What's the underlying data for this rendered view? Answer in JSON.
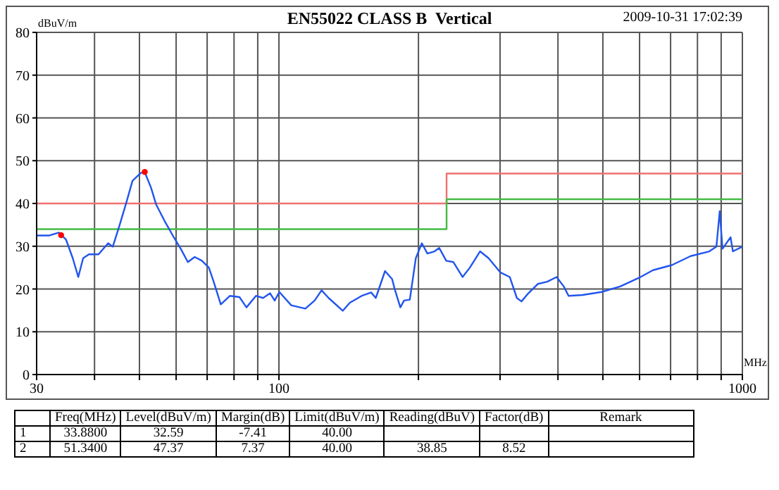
{
  "chart_data": {
    "type": "line",
    "title": "EN55022 CLASS B  Vertical",
    "xlabel": "MHz",
    "ylabel": "dBuV/m",
    "annotations": [
      "2009-10-31  17:02:39",
      "Freq(MHz)",
      "Level(dBuV/m)",
      "Margin(dB)",
      "Limit(dBuV/m)",
      "Reading(dBuV)",
      "Factor(dB)",
      "Remark",
      "1",
      "33.8800",
      "32.59",
      "-7.41",
      "40.00",
      "2",
      "51.3400",
      "47.37",
      "7.37",
      "40.00",
      "38.85",
      "8.52"
    ],
    "log": "x",
    "grid": true,
    "xlim": [
      30,
      1000
    ],
    "xticks": [
      30,
      {
        "value": 40,
        "label": null
      },
      {
        "value": 50,
        "label": null
      },
      {
        "value": 60,
        "label": null
      },
      {
        "value": 70,
        "label": null
      },
      {
        "value": 80,
        "label": null
      },
      {
        "value": 90,
        "label": null
      },
      100,
      {
        "value": 200,
        "label": null
      },
      {
        "value": 300,
        "label": null
      },
      {
        "value": 400,
        "label": null
      },
      {
        "value": 500,
        "label": null
      },
      {
        "value": 600,
        "label": null
      },
      {
        "value": 700,
        "label": null
      },
      {
        "value": 800,
        "label": null
      },
      {
        "value": 900,
        "label": null
      },
      1000
    ],
    "ylim": [
      0,
      80
    ],
    "yticks": [
      0,
      10,
      20,
      30,
      40,
      50,
      60,
      70,
      80
    ],
    "series": [
      {
        "type": "line",
        "color": "#f07070",
        "x": [
          30,
          230,
          230,
          1000
        ],
        "values": [
          40,
          40,
          47,
          47
        ]
      },
      {
        "type": "line",
        "color": "#44bb44",
        "x": [
          30,
          230,
          230,
          1000
        ],
        "values": [
          34,
          34,
          41,
          41
        ]
      },
      {
        "type": "line",
        "color": "#2255ee",
        "x": [
          30,
          31.9,
          33.5,
          34.7,
          35.9,
          36.9,
          37.8,
          38.9,
          40.8,
          42.8,
          43.8,
          45.3,
          46.9,
          48.3,
          50.3,
          51.3,
          53.0,
          54.3,
          56.6,
          59.3,
          61.4,
          63.6,
          65.8,
          68.2,
          70.6,
          72.3,
          74.9,
          78.4,
          82.2,
          85.1,
          89.2,
          92.4,
          95.7,
          97.9,
          100.2,
          106.3,
          114,
          119.4,
          123.6,
          128,
          137.3,
          142.2,
          150.9,
          158.1,
          161.8,
          169.4,
          175.5,
          177.6,
          182.8,
          186.2,
          191.6,
          197.4,
          203.4,
          209.1,
          216.6,
          221.7,
          229.6,
          237.8,
          249,
          258.2,
          271.6,
          283.4,
          300.3,
          314.8,
          326.1,
          333.7,
          345.3,
          362.2,
          379.3,
          397.3,
          411.7,
          421.7,
          452,
          496.5,
          544.9,
          598,
          641.4,
          704.7,
          773.3,
          848.6,
          879,
          893.6,
          906,
          943,
          954,
          1000
        ],
        "values": [
          32.5,
          32.5,
          33.2,
          31.6,
          27.2,
          22.8,
          27.2,
          28.1,
          28.1,
          30.7,
          29.9,
          34.9,
          40.4,
          45.3,
          47.1,
          47.4,
          43.6,
          39.8,
          36.0,
          32.1,
          29.4,
          26.3,
          27.5,
          26.6,
          25.0,
          21.7,
          16.4,
          18.4,
          18.1,
          15.7,
          18.4,
          17.9,
          19.0,
          17.3,
          19.3,
          16.2,
          15.4,
          17.3,
          19.7,
          17.9,
          14.9,
          16.8,
          18.4,
          19.2,
          17.9,
          24.2,
          22.3,
          20.1,
          15.7,
          17.3,
          17.5,
          27.2,
          30.7,
          28.3,
          28.8,
          29.6,
          26.6,
          26.3,
          22.8,
          25.0,
          28.8,
          27.2,
          23.9,
          22.8,
          17.9,
          17.1,
          19.0,
          21.2,
          21.7,
          22.8,
          20.6,
          18.4,
          18.6,
          19.3,
          20.6,
          22.6,
          24.4,
          25.6,
          27.7,
          28.8,
          29.9,
          38.2,
          29.4,
          32.1,
          28.8,
          29.9
        ]
      },
      {
        "type": "scatter",
        "color": "#ff0000",
        "marker": "circle",
        "x": [
          33.88,
          51.34
        ],
        "values": [
          32.59,
          47.37
        ]
      }
    ]
  }
}
